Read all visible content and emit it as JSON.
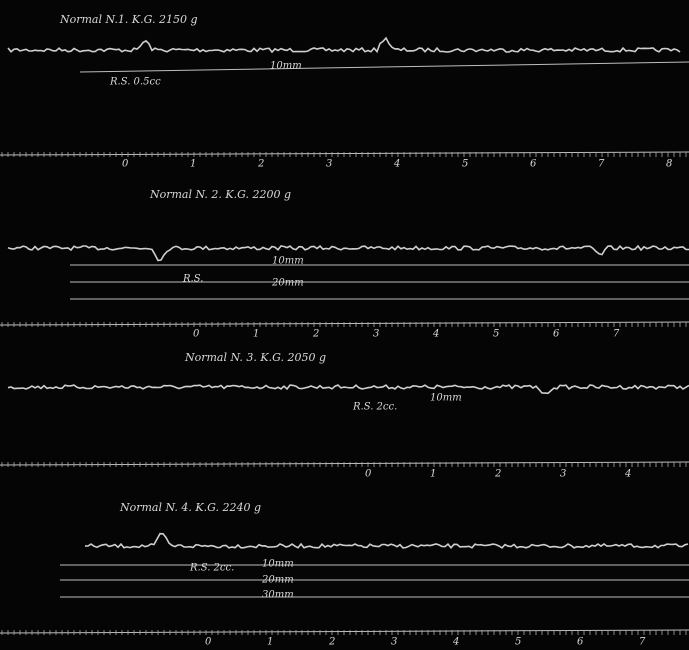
{
  "panels": [
    {
      "title": "Normal N.1. K.G. 2150 g",
      "annotations": [
        "R.S. 0.5cc",
        "10mm"
      ],
      "scale_labels": [
        "0",
        "1",
        "2",
        "3",
        "4",
        "5",
        "6",
        "7",
        "8"
      ]
    },
    {
      "title": "Normal N. 2. K.G. 2200 g",
      "annotations": [
        "R.S.",
        "10mm",
        "20mm"
      ],
      "scale_labels": [
        "0",
        "1",
        "2",
        "3",
        "4",
        "5",
        "6",
        "7"
      ]
    },
    {
      "title": "Normal N. 3. K.G. 2050 g",
      "annotations": [
        "R.S. 2cc.",
        "10mm"
      ],
      "scale_labels": [
        "0",
        "1",
        "2",
        "3",
        "4"
      ]
    },
    {
      "title": "Normal N. 4. K.G. 2240 g",
      "annotations": [
        "R.S. 2cc.",
        "10mm",
        "20mm",
        "30mm"
      ],
      "scale_labels": [
        "0",
        "1",
        "2",
        "3",
        "4",
        "5",
        "6",
        "7"
      ]
    }
  ]
}
